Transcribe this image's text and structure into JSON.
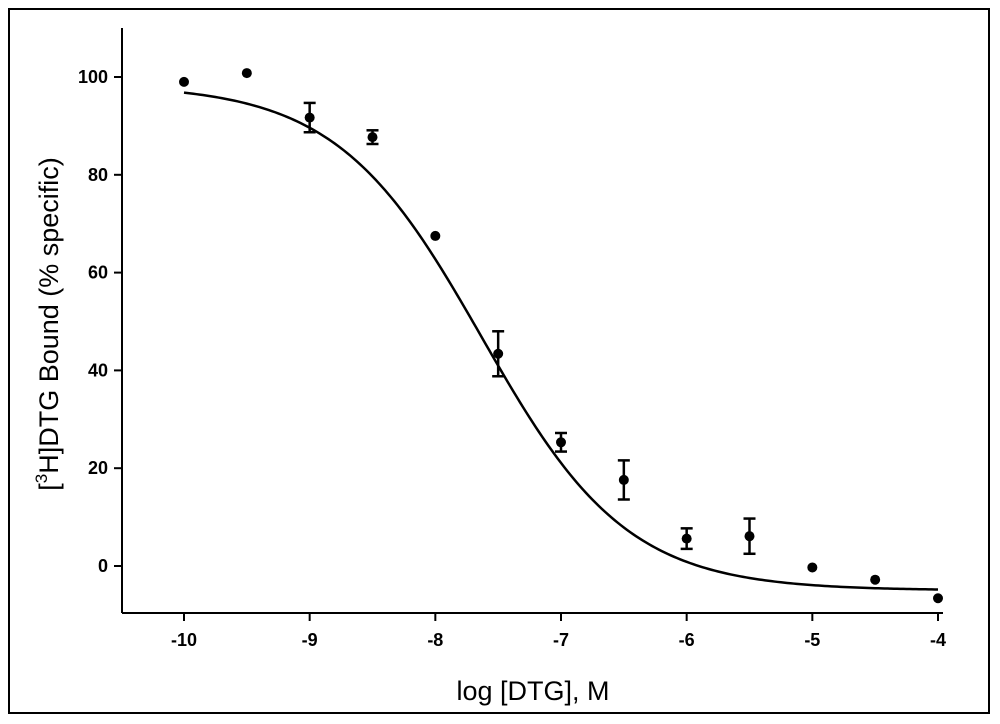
{
  "chart_data": {
    "type": "scatter",
    "title": "",
    "xlabel": "log [DTG], M",
    "ylabel": {
      "prefix": "[",
      "superscript": "3",
      "suffix": "H]DTG Bound (% specific)"
    },
    "xlim": [
      -10.5,
      -3.95
    ],
    "ylim": [
      -10,
      110
    ],
    "x_ticks": [
      -10,
      -9,
      -8,
      -7,
      -6,
      -5,
      -4
    ],
    "x_tick_labels": [
      "-10",
      "-9",
      "-8",
      "-7",
      "-6",
      "-5",
      "-4"
    ],
    "y_ticks": [
      0,
      20,
      40,
      60,
      80,
      100
    ],
    "y_tick_labels": [
      "0",
      "20",
      "40",
      "60",
      "80",
      "100"
    ],
    "grid": false,
    "legend": "none",
    "series": [
      {
        "points": [
          {
            "x": -10.0,
            "y": 99.0,
            "err": 0
          },
          {
            "x": -9.5,
            "y": 100.8,
            "err": 0
          },
          {
            "x": -9.0,
            "y": 91.7,
            "err": 3.0
          },
          {
            "x": -8.5,
            "y": 87.7,
            "err": 1.4
          },
          {
            "x": -8.0,
            "y": 67.5,
            "err": 0
          },
          {
            "x": -7.5,
            "y": 43.4,
            "err": 4.6
          },
          {
            "x": -7.0,
            "y": 25.3,
            "err": 1.9
          },
          {
            "x": -6.5,
            "y": 17.6,
            "err": 4.0
          },
          {
            "x": -6.0,
            "y": 5.6,
            "err": 2.1
          },
          {
            "x": -5.5,
            "y": 6.1,
            "err": 3.6
          },
          {
            "x": -5.0,
            "y": -0.3,
            "err": 0
          },
          {
            "x": -4.5,
            "y": -2.8,
            "err": 0
          },
          {
            "x": -4.0,
            "y": -6.6,
            "err": 0
          }
        ]
      }
    ],
    "fit_curve": {
      "type": "sigmoidal dose-response",
      "top": 98.5,
      "bottom": -5.0,
      "log_ic50": -7.63,
      "hill_slope": -0.75,
      "x_range": [
        -10,
        -4
      ]
    },
    "colors": {
      "marks": "#000000",
      "background": "#ffffff"
    }
  }
}
